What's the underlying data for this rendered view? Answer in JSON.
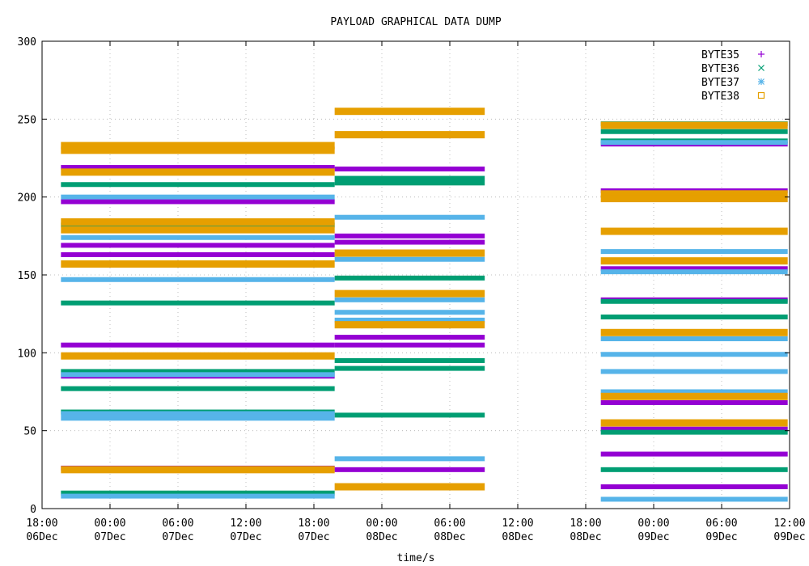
{
  "chart_data": {
    "type": "scatter",
    "title": "PAYLOAD GRAPHICAL DATA DUMP",
    "xlabel": "time/s",
    "ylabel": "",
    "ylim": [
      0,
      300
    ],
    "yticks": [
      0,
      50,
      100,
      150,
      200,
      250,
      300
    ],
    "xlim": [
      "2023-12-06T18:00",
      "2023-12-09T12:00"
    ],
    "xticks": [
      {
        "t": "2023-12-06T18:00",
        "line1": "18:00",
        "line2": "06Dec"
      },
      {
        "t": "2023-12-07T00:00",
        "line1": "00:00",
        "line2": "07Dec"
      },
      {
        "t": "2023-12-07T06:00",
        "line1": "06:00",
        "line2": "07Dec"
      },
      {
        "t": "2023-12-07T12:00",
        "line1": "12:00",
        "line2": "07Dec"
      },
      {
        "t": "2023-12-07T18:00",
        "line1": "18:00",
        "line2": "07Dec"
      },
      {
        "t": "2023-12-08T00:00",
        "line1": "00:00",
        "line2": "08Dec"
      },
      {
        "t": "2023-12-08T06:00",
        "line1": "06:00",
        "line2": "08Dec"
      },
      {
        "t": "2023-12-08T12:00",
        "line1": "12:00",
        "line2": "08Dec"
      },
      {
        "t": "2023-12-08T18:00",
        "line1": "18:00",
        "line2": "08Dec"
      },
      {
        "t": "2023-12-09T00:00",
        "line1": "00:00",
        "line2": "09Dec"
      },
      {
        "t": "2023-12-09T06:00",
        "line1": "06:00",
        "line2": "09Dec"
      },
      {
        "t": "2023-12-09T12:00",
        "line1": "12:00",
        "line2": "09Dec"
      }
    ],
    "grid": true,
    "legend": "top-right",
    "segments": [
      {
        "start": "2023-12-06T19:40",
        "end": "2023-12-07T19:50"
      },
      {
        "start": "2023-12-07T19:50",
        "end": "2023-12-08T09:05"
      },
      {
        "start": "2023-12-08T19:20",
        "end": "2023-12-09T11:50"
      }
    ],
    "series": [
      {
        "name": "BYTE35",
        "marker": "plus",
        "color": "#9400d3",
        "levels": [
          [
            219,
            197,
            169,
            163,
            105,
            85,
            26
          ],
          [
            218,
            175,
            171,
            110,
            105,
            25
          ],
          [
            234,
            204,
            154,
            134,
            68,
            51,
            35,
            14
          ]
        ]
      },
      {
        "name": "BYTE36",
        "marker": "cross",
        "color": "#009e73",
        "levels": [
          [
            208,
            182,
            132,
            88,
            77,
            62,
            10
          ],
          [
            212,
            209,
            148,
            95,
            90,
            60
          ],
          [
            247,
            242,
            236,
            133,
            123,
            49,
            25
          ]
        ]
      },
      {
        "name": "BYTE37",
        "marker": "star",
        "color": "#56b4e9",
        "levels": [
          [
            200,
            174,
            147,
            86,
            61,
            58,
            8
          ],
          [
            187,
            160,
            134,
            126,
            121,
            32
          ],
          [
            235,
            165,
            152,
            109,
            99,
            88,
            75,
            6
          ]
        ]
      },
      {
        "name": "BYTE38",
        "marker": "square",
        "color": "#e69f00",
        "levels": [
          [
            233,
            230,
            216,
            184,
            179,
            157,
            98,
            25
          ],
          [
            255,
            240,
            164,
            138,
            118,
            14
          ],
          [
            246,
            202,
            199,
            178,
            159,
            113,
            72,
            55
          ]
        ]
      }
    ]
  }
}
